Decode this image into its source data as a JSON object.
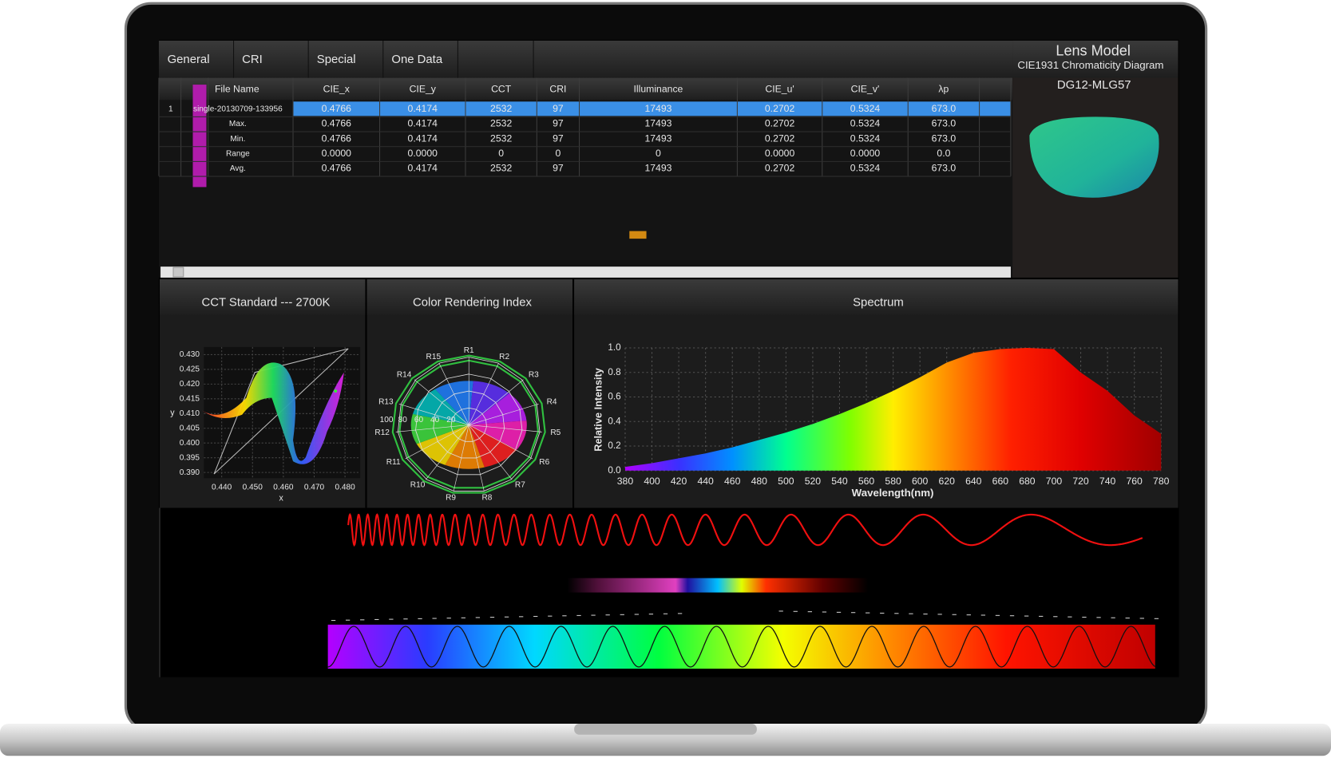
{
  "tabs": [
    "General",
    "CRI",
    "Special",
    "One Data"
  ],
  "lens_panel": {
    "title": "Lens Model",
    "subtitle": "CIE1931 Chromaticity Diagram",
    "model": "DG12-MLG57"
  },
  "table": {
    "headers": [
      "File Name",
      "CIE_x",
      "CIE_y",
      "CCT",
      "CRI",
      "Illuminance",
      "CIE_u'",
      "CIE_v'",
      "λp"
    ],
    "rows": [
      {
        "index": "1",
        "label": "single-20130709-133956",
        "cells": [
          "0.4766",
          "0.4174",
          "2532",
          "97",
          "17493",
          "0.2702",
          "0.5324",
          "673.0"
        ]
      },
      {
        "label": "Max.",
        "cells": [
          "0.4766",
          "0.4174",
          "2532",
          "97",
          "17493",
          "0.2702",
          "0.5324",
          "673.0"
        ]
      },
      {
        "label": "Min.",
        "cells": [
          "0.4766",
          "0.4174",
          "2532",
          "97",
          "17493",
          "0.2702",
          "0.5324",
          "673.0"
        ]
      },
      {
        "label": "Range",
        "cells": [
          "0.0000",
          "0.0000",
          "0",
          "0",
          "0",
          "0.0000",
          "0.0000",
          "0.0"
        ]
      },
      {
        "label": "Avg.",
        "cells": [
          "0.4766",
          "0.4174",
          "2532",
          "97",
          "17493",
          "0.2702",
          "0.5324",
          "673.0"
        ]
      }
    ]
  },
  "cct_panel": {
    "title": "CCT Standard  ---  2700K",
    "y_label": "y",
    "x_label": "x",
    "yticks": [
      "0.430",
      "0.425",
      "0.420",
      "0.415",
      "0.410",
      "0.405",
      "0.400",
      "0.395",
      "0.390"
    ],
    "xticks": [
      "0.440",
      "0.450",
      "0.460",
      "0.470",
      "0.480"
    ]
  },
  "cri_panel": {
    "title": "Color Rendering Index",
    "points": [
      "R1",
      "R2",
      "R3",
      "R4",
      "R5",
      "R6",
      "R7",
      "R8",
      "R9",
      "R10",
      "R11",
      "R12",
      "R13",
      "R14",
      "R15"
    ],
    "rings": [
      "100",
      "80",
      "60",
      "40",
      "20"
    ]
  },
  "spectrum_panel": {
    "title": "Spectrum",
    "y_label": "Relative Intensity",
    "x_label": "Wavelength(nm)",
    "x": [
      380,
      400,
      420,
      440,
      460,
      480,
      500,
      520,
      540,
      560,
      580,
      600,
      620,
      640,
      660,
      680,
      700,
      720,
      740,
      760,
      780
    ],
    "values": [
      0.03,
      0.06,
      0.1,
      0.14,
      0.19,
      0.25,
      0.31,
      0.38,
      0.46,
      0.55,
      0.65,
      0.76,
      0.88,
      0.96,
      0.99,
      1.0,
      0.99,
      0.8,
      0.65,
      0.45,
      0.3
    ],
    "xlim": [
      380,
      780
    ],
    "ylim": [
      0,
      1
    ],
    "xticks": [
      380,
      400,
      420,
      440,
      460,
      480,
      500,
      520,
      540,
      560,
      580,
      600,
      620,
      640,
      660,
      680,
      700,
      720,
      740,
      760,
      780
    ],
    "yticks": [
      {
        "value": 0,
        "label": "0.0"
      },
      {
        "value": 0.2,
        "label": "0.2"
      },
      {
        "value": 0.4,
        "label": "0.4"
      },
      {
        "value": 0.6,
        "label": "0.6"
      },
      {
        "value": 0.8,
        "label": "0.8"
      },
      {
        "value": 1,
        "label": "1.0"
      }
    ]
  }
}
